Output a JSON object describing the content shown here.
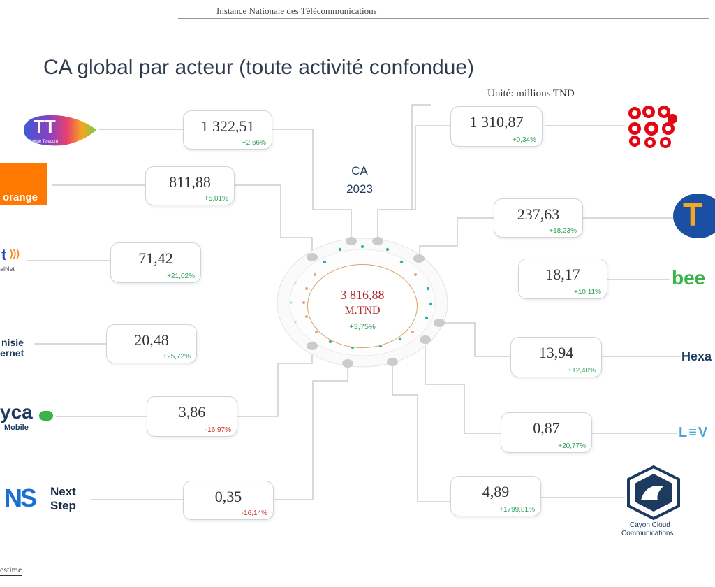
{
  "header": "Instance Nationale des Télécommunications",
  "title": "CA global par acteur (toute activité confondue)",
  "unit": "Unité: millions TND",
  "ca_label": [
    "CA",
    "2023"
  ],
  "center": {
    "value": "3 816,88",
    "unit": "M.TND",
    "pct": "+3,75%"
  },
  "actors": [
    {
      "id": "tunisie-telecom",
      "value": "1 322,51",
      "pct": "+2,66%",
      "trend": "up"
    },
    {
      "id": "orange",
      "value": "811,88",
      "pct": "+5,01%",
      "trend": "up"
    },
    {
      "id": "globalnet",
      "value": "71,42",
      "pct": "+21,02%",
      "trend": "up"
    },
    {
      "id": "tunisie-internet",
      "value": "20,48",
      "pct": "+25,72%",
      "trend": "up"
    },
    {
      "id": "lycamobile",
      "value": "3,86",
      "pct": "-16,97%",
      "trend": "down"
    },
    {
      "id": "next-step",
      "value": "0,35",
      "pct": "-16,14%",
      "trend": "down"
    },
    {
      "id": "ooredoo",
      "value": "1 310,87",
      "pct": "+0,34%",
      "trend": "up"
    },
    {
      "id": "topnet",
      "value": "237,63",
      "pct": "+18,23%",
      "trend": "up"
    },
    {
      "id": "bee",
      "value": "18,17",
      "pct": "+10,11%",
      "trend": "up"
    },
    {
      "id": "hexabyte",
      "value": "13,94",
      "pct": "+12,40%",
      "trend": "up"
    },
    {
      "id": "levant",
      "value": "0,87",
      "pct": "+20,77%",
      "trend": "up"
    },
    {
      "id": "cayon-cloud",
      "value": "4,89",
      "pct": "+1799,81%",
      "trend": "up"
    }
  ],
  "logos": {
    "tunisie_telecom": {
      "text": "TT",
      "sub": "Tunisie Telecom"
    },
    "orange": {
      "text": "orange"
    },
    "globalnet": {
      "text": "t",
      "sub": "alNet"
    },
    "tunisie_internet": {
      "text": "nisie",
      "text2": "ernet"
    },
    "lycamobile": {
      "text": "yca",
      "sub": "Mobile"
    },
    "next_step": {
      "text": "NS",
      "text2": "Next",
      "text3": "Step"
    },
    "ooredoo": {
      "text": "ooredoo"
    },
    "topnet": {
      "text": "T"
    },
    "bee": {
      "text": "bee"
    },
    "hexabyte": {
      "text": "Hexa"
    },
    "levant": {
      "text": "L≡V"
    },
    "cayon": {
      "text": "Cayon Cloud",
      "text2": "Communications"
    }
  },
  "footer_note": "estimé",
  "colors": {
    "positive": "#2f9e5a",
    "negative": "#cc2b2b",
    "center": "#b22a2a",
    "orange": "#ff7900",
    "ooredoo": "#e30613",
    "topnet_blue": "#1a4fa3",
    "topnet_orange": "#f5a623",
    "bee_green": "#38b44a",
    "cayon_navy": "#1d3a5f"
  }
}
